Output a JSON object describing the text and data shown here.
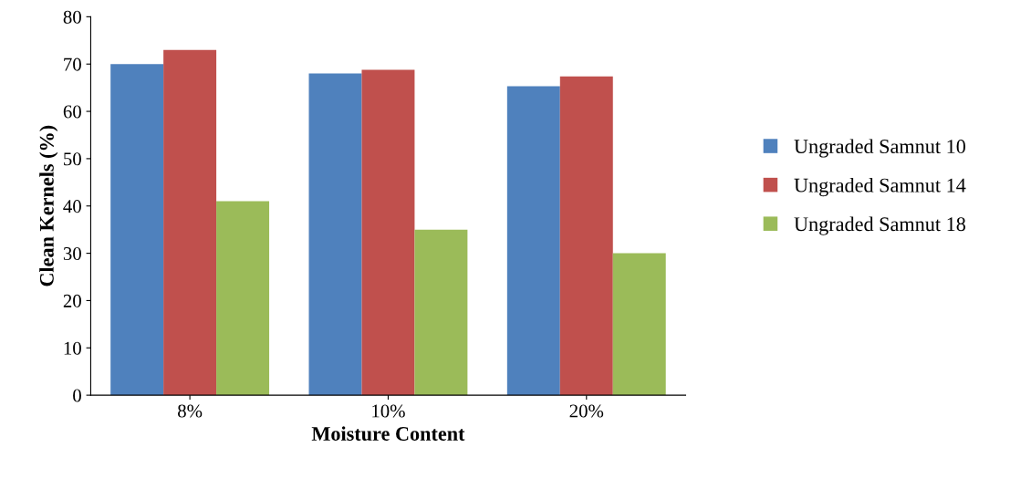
{
  "chart_data": {
    "type": "bar",
    "xlabel": "Moisture Content",
    "ylabel": "Clean Kernels (%)",
    "categories": [
      "8%",
      "10%",
      "20%"
    ],
    "series": [
      {
        "name": "Ungraded Samnut 10",
        "color": "#4f81bd",
        "values": [
          70,
          68,
          65.3
        ]
      },
      {
        "name": "Ungraded Samnut 14",
        "color": "#c0504d",
        "values": [
          73,
          68.8,
          67.4
        ]
      },
      {
        "name": "Ungraded Samnut 18",
        "color": "#9bbb59",
        "values": [
          41,
          35,
          30
        ]
      }
    ],
    "ylim": [
      0,
      80
    ],
    "yticks": [
      0,
      10,
      20,
      30,
      40,
      50,
      60,
      70,
      80
    ],
    "grid": false,
    "legend": "right"
  }
}
